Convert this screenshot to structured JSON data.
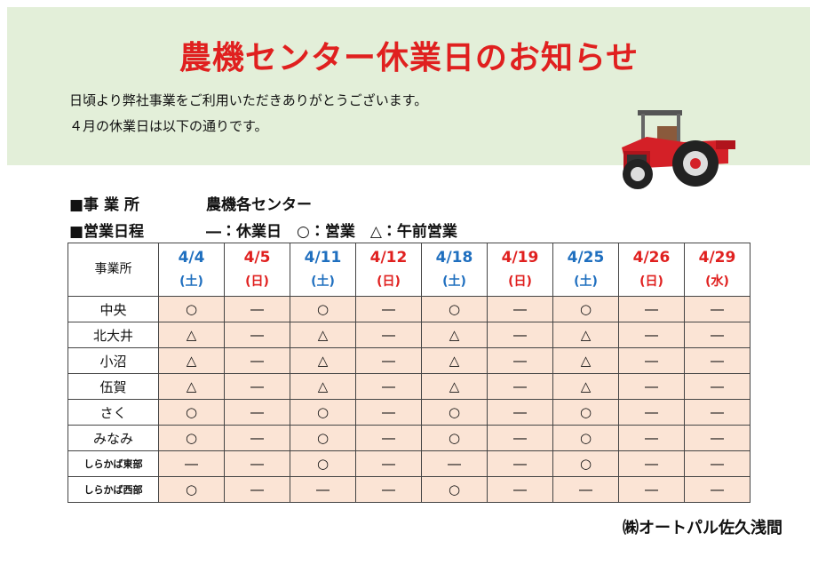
{
  "header": {
    "title": "農機センター休業日のお知らせ",
    "lines": [
      "日頃より弊社事業をご利用いただきありがとうございます。",
      "４月の休業日は以下の通りです。"
    ]
  },
  "info": [
    {
      "label": "■事 業 所",
      "value": "農機各センター"
    },
    {
      "label": "■営業日程",
      "value": "―：休業日　○：営業　△：午前営業"
    }
  ],
  "table": {
    "corner": "事業所",
    "columns": [
      {
        "date": "4/4",
        "day": "(土)",
        "color": "#1f6fbf"
      },
      {
        "date": "4/5",
        "day": "(日)",
        "color": "#e0201f"
      },
      {
        "date": "4/11",
        "day": "(土)",
        "color": "#1f6fbf"
      },
      {
        "date": "4/12",
        "day": "(日)",
        "color": "#e0201f"
      },
      {
        "date": "4/18",
        "day": "(土)",
        "color": "#1f6fbf"
      },
      {
        "date": "4/19",
        "day": "(日)",
        "color": "#e0201f"
      },
      {
        "date": "4/25",
        "day": "(土)",
        "color": "#1f6fbf"
      },
      {
        "date": "4/26",
        "day": "(日)",
        "color": "#e0201f"
      },
      {
        "date": "4/29",
        "day": "(水)",
        "color": "#e0201f"
      }
    ],
    "rows": [
      {
        "name": "中央",
        "cells": [
          "○",
          "―",
          "○",
          "―",
          "○",
          "―",
          "○",
          "―",
          "―"
        ]
      },
      {
        "name": "北大井",
        "cells": [
          "△",
          "―",
          "△",
          "―",
          "△",
          "―",
          "△",
          "―",
          "―"
        ]
      },
      {
        "name": "小沼",
        "cells": [
          "△",
          "―",
          "△",
          "―",
          "△",
          "―",
          "△",
          "―",
          "―"
        ]
      },
      {
        "name": "伍賀",
        "cells": [
          "△",
          "―",
          "△",
          "―",
          "△",
          "―",
          "△",
          "―",
          "―"
        ]
      },
      {
        "name": "さく",
        "cells": [
          "○",
          "―",
          "○",
          "―",
          "○",
          "―",
          "○",
          "―",
          "―"
        ]
      },
      {
        "name": "みなみ",
        "cells": [
          "○",
          "―",
          "○",
          "―",
          "○",
          "―",
          "○",
          "―",
          "―"
        ]
      },
      {
        "name": "しらかば東部",
        "cells": [
          "―",
          "―",
          "○",
          "―",
          "―",
          "―",
          "○",
          "―",
          "―"
        ]
      },
      {
        "name": "しらかば西部",
        "cells": [
          "○",
          "―",
          "―",
          "―",
          "○",
          "―",
          "―",
          "―",
          "―"
        ]
      }
    ]
  },
  "footer": "㈱オートパル佐久浅間"
}
